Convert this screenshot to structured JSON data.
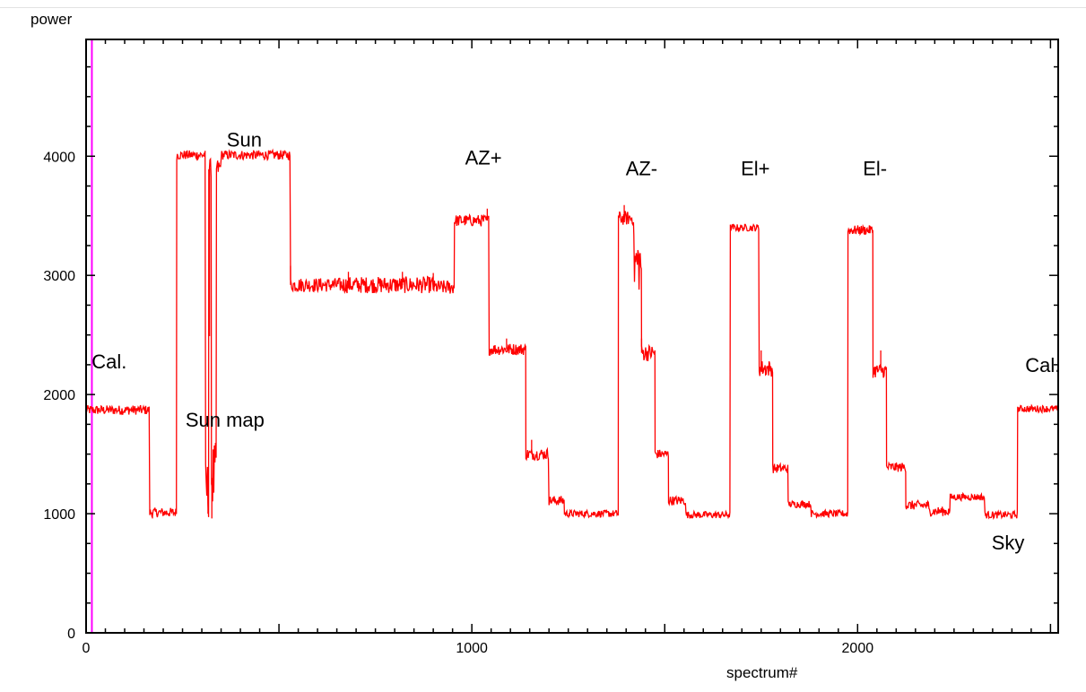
{
  "chart_data": {
    "type": "line",
    "ylabel": "power",
    "xlabel": "spectrum#",
    "xlim": [
      0,
      2520
    ],
    "ylim": [
      0,
      4980
    ],
    "xticks": [
      0,
      1000,
      2000
    ],
    "yticks": [
      0,
      1000,
      2000,
      3000,
      4000
    ],
    "grid": false,
    "colors": {
      "series": "#ff0000",
      "cursor": "#ff00ff",
      "axis": "#000000"
    },
    "cursor_x": 15,
    "series": [
      {
        "segments": [
          [
            0,
            165,
            1870,
            40
          ],
          [
            165,
            235,
            1010,
            40
          ],
          [
            235,
            310,
            4010,
            40
          ],
          [
            310,
            318,
            1200,
            250
          ],
          [
            318,
            325,
            3900,
            80
          ],
          [
            325,
            338,
            1300,
            300
          ],
          [
            338,
            350,
            3900,
            80
          ],
          [
            350,
            530,
            4010,
            40
          ],
          [
            530,
            660,
            2920,
            60
          ],
          [
            660,
            900,
            2920,
            70
          ],
          [
            900,
            955,
            2900,
            60
          ],
          [
            955,
            1045,
            3460,
            50
          ],
          [
            1045,
            1140,
            2380,
            50
          ],
          [
            1140,
            1200,
            1500,
            50
          ],
          [
            1200,
            1240,
            1110,
            40
          ],
          [
            1240,
            1380,
            1000,
            30
          ],
          [
            1380,
            1420,
            3480,
            60
          ],
          [
            1420,
            1440,
            3100,
            250
          ],
          [
            1440,
            1475,
            2350,
            70
          ],
          [
            1475,
            1510,
            1500,
            40
          ],
          [
            1510,
            1555,
            1110,
            40
          ],
          [
            1555,
            1670,
            990,
            30
          ],
          [
            1670,
            1745,
            3400,
            30
          ],
          [
            1745,
            1780,
            2220,
            70
          ],
          [
            1780,
            1820,
            1380,
            40
          ],
          [
            1820,
            1880,
            1080,
            30
          ],
          [
            1880,
            1975,
            1000,
            30
          ],
          [
            1975,
            2040,
            3380,
            40
          ],
          [
            2040,
            2075,
            2200,
            60
          ],
          [
            2075,
            2125,
            1390,
            40
          ],
          [
            2125,
            2185,
            1070,
            40
          ],
          [
            2185,
            2240,
            1020,
            40
          ],
          [
            2240,
            2330,
            1140,
            30
          ],
          [
            2330,
            2415,
            990,
            30
          ],
          [
            2415,
            2520,
            1880,
            30
          ]
        ],
        "spikes": [
          [
            530,
            3080
          ],
          [
            680,
            3030
          ],
          [
            820,
            3030
          ],
          [
            900,
            3020
          ],
          [
            1040,
            3560
          ],
          [
            1395,
            3590
          ],
          [
            1440,
            2470
          ],
          [
            1155,
            1620
          ],
          [
            1750,
            2370
          ],
          [
            2060,
            2370
          ],
          [
            320,
            2490
          ],
          [
            326,
            960
          ],
          [
            316,
            1000
          ],
          [
            172,
            960
          ],
          [
            1090,
            2470
          ]
        ]
      }
    ],
    "annotations": [
      {
        "text": "Cal.",
        "x": 60,
        "y": 2220
      },
      {
        "text": "Sun map",
        "x": 360,
        "y": 1730
      },
      {
        "text": "Sun",
        "x": 410,
        "y": 4080
      },
      {
        "text": "AZ+",
        "x": 1030,
        "y": 3930
      },
      {
        "text": "AZ-",
        "x": 1440,
        "y": 3840
      },
      {
        "text": "El+",
        "x": 1735,
        "y": 3840
      },
      {
        "text": "El-",
        "x": 2045,
        "y": 3840
      },
      {
        "text": "Cal.",
        "x": 2480,
        "y": 2190
      },
      {
        "text": "Sky",
        "x": 2390,
        "y": 700
      }
    ]
  }
}
